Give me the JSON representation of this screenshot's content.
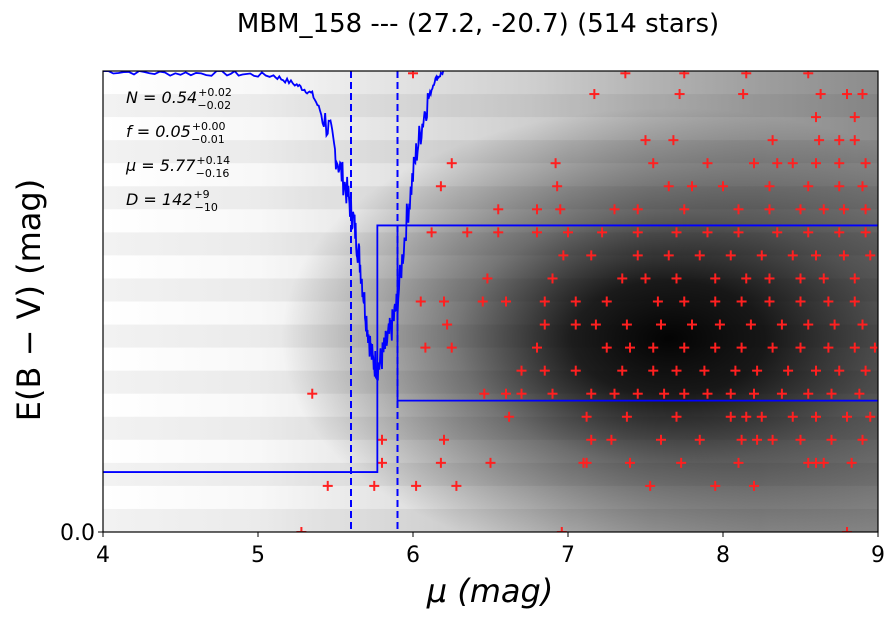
{
  "chart_data": {
    "type": "scatter",
    "title": "MBM_158 --- (27.2, -20.7) (514 stars)",
    "xlabel": "μ (mag)",
    "ylabel": "E(B − V) (mag)",
    "xlim": [
      4,
      9
    ],
    "ylim": [
      0,
      1
    ],
    "x_ticks": [
      "4",
      "5",
      "6",
      "7",
      "8",
      "9"
    ],
    "y_ticks": [
      "0.0"
    ],
    "annotations": [
      {
        "main": "N = 0.54",
        "sup": "+0.02",
        "sub": "−0.02"
      },
      {
        "main": "f = 0.05",
        "sup": "+0.00",
        "sub": "−0.01"
      },
      {
        "main": "μ = 5.77",
        "sup": "+0.14",
        "sub": "−0.16"
      },
      {
        "main": "D = 142",
        "sup": "+9",
        "sub": "−10"
      }
    ],
    "dashed_lines_x": [
      5.6,
      5.9
    ],
    "step_model": [
      {
        "x": 4.0,
        "y": 0.13
      },
      {
        "x": 5.77,
        "y": 0.13
      },
      {
        "x": 5.77,
        "y": 0.665
      },
      {
        "x": 9.0,
        "y": 0.665
      }
    ],
    "step_model_upper": [
      {
        "x": 5.9,
        "y": 0.665
      },
      {
        "x": 5.9,
        "y": 0.285
      },
      {
        "x": 9.0,
        "y": 0.285
      }
    ],
    "probability_curve": [
      {
        "x": 4.0,
        "y": 1.0
      },
      {
        "x": 4.4,
        "y": 0.995
      },
      {
        "x": 4.8,
        "y": 0.995
      },
      {
        "x": 5.1,
        "y": 0.99
      },
      {
        "x": 5.25,
        "y": 0.97
      },
      {
        "x": 5.35,
        "y": 0.95
      },
      {
        "x": 5.45,
        "y": 0.88
      },
      {
        "x": 5.52,
        "y": 0.8
      },
      {
        "x": 5.58,
        "y": 0.73
      },
      {
        "x": 5.62,
        "y": 0.67
      },
      {
        "x": 5.66,
        "y": 0.58
      },
      {
        "x": 5.7,
        "y": 0.46
      },
      {
        "x": 5.74,
        "y": 0.37
      },
      {
        "x": 5.78,
        "y": 0.36
      },
      {
        "x": 5.82,
        "y": 0.4
      },
      {
        "x": 5.86,
        "y": 0.44
      },
      {
        "x": 5.9,
        "y": 0.5
      },
      {
        "x": 5.96,
        "y": 0.68
      },
      {
        "x": 6.02,
        "y": 0.82
      },
      {
        "x": 6.08,
        "y": 0.92
      },
      {
        "x": 6.14,
        "y": 0.98
      },
      {
        "x": 6.2,
        "y": 1.0
      }
    ],
    "stars": [
      {
        "x": 5.28,
        "y": 0.0
      },
      {
        "x": 6.96,
        "y": 0.0
      },
      {
        "x": 8.8,
        "y": 0.0
      },
      {
        "x": 5.45,
        "y": 0.1
      },
      {
        "x": 5.75,
        "y": 0.1
      },
      {
        "x": 6.02,
        "y": 0.1
      },
      {
        "x": 6.28,
        "y": 0.1
      },
      {
        "x": 7.53,
        "y": 0.1
      },
      {
        "x": 7.95,
        "y": 0.1
      },
      {
        "x": 8.2,
        "y": 0.1
      },
      {
        "x": 5.8,
        "y": 0.15
      },
      {
        "x": 6.18,
        "y": 0.15
      },
      {
        "x": 6.5,
        "y": 0.15
      },
      {
        "x": 7.1,
        "y": 0.15
      },
      {
        "x": 7.12,
        "y": 0.15
      },
      {
        "x": 7.4,
        "y": 0.15
      },
      {
        "x": 7.73,
        "y": 0.15
      },
      {
        "x": 8.1,
        "y": 0.15
      },
      {
        "x": 8.55,
        "y": 0.15
      },
      {
        "x": 8.6,
        "y": 0.15
      },
      {
        "x": 8.65,
        "y": 0.15
      },
      {
        "x": 8.83,
        "y": 0.15
      },
      {
        "x": 5.8,
        "y": 0.2
      },
      {
        "x": 6.2,
        "y": 0.2
      },
      {
        "x": 7.15,
        "y": 0.2
      },
      {
        "x": 7.28,
        "y": 0.2
      },
      {
        "x": 7.6,
        "y": 0.2
      },
      {
        "x": 7.85,
        "y": 0.2
      },
      {
        "x": 8.12,
        "y": 0.2
      },
      {
        "x": 8.22,
        "y": 0.2
      },
      {
        "x": 8.32,
        "y": 0.2
      },
      {
        "x": 8.5,
        "y": 0.2
      },
      {
        "x": 8.7,
        "y": 0.2
      },
      {
        "x": 8.9,
        "y": 0.2
      },
      {
        "x": 6.62,
        "y": 0.25
      },
      {
        "x": 7.12,
        "y": 0.25
      },
      {
        "x": 7.38,
        "y": 0.25
      },
      {
        "x": 7.7,
        "y": 0.25
      },
      {
        "x": 8.05,
        "y": 0.25
      },
      {
        "x": 8.15,
        "y": 0.25
      },
      {
        "x": 8.25,
        "y": 0.25
      },
      {
        "x": 8.45,
        "y": 0.25
      },
      {
        "x": 8.6,
        "y": 0.25
      },
      {
        "x": 8.8,
        "y": 0.25
      },
      {
        "x": 8.95,
        "y": 0.25
      },
      {
        "x": 5.35,
        "y": 0.3
      },
      {
        "x": 6.46,
        "y": 0.3
      },
      {
        "x": 6.6,
        "y": 0.3
      },
      {
        "x": 6.7,
        "y": 0.3
      },
      {
        "x": 6.9,
        "y": 0.3
      },
      {
        "x": 7.15,
        "y": 0.3
      },
      {
        "x": 7.3,
        "y": 0.3
      },
      {
        "x": 7.45,
        "y": 0.3
      },
      {
        "x": 7.62,
        "y": 0.3
      },
      {
        "x": 7.75,
        "y": 0.3
      },
      {
        "x": 7.9,
        "y": 0.3
      },
      {
        "x": 8.05,
        "y": 0.3
      },
      {
        "x": 8.2,
        "y": 0.3
      },
      {
        "x": 8.38,
        "y": 0.3
      },
      {
        "x": 8.55,
        "y": 0.3
      },
      {
        "x": 8.7,
        "y": 0.3
      },
      {
        "x": 8.88,
        "y": 0.3
      },
      {
        "x": 6.7,
        "y": 0.35
      },
      {
        "x": 6.85,
        "y": 0.35
      },
      {
        "x": 7.05,
        "y": 0.35
      },
      {
        "x": 7.35,
        "y": 0.35
      },
      {
        "x": 7.55,
        "y": 0.35
      },
      {
        "x": 7.7,
        "y": 0.35
      },
      {
        "x": 7.88,
        "y": 0.35
      },
      {
        "x": 8.08,
        "y": 0.35
      },
      {
        "x": 8.22,
        "y": 0.35
      },
      {
        "x": 8.42,
        "y": 0.35
      },
      {
        "x": 8.6,
        "y": 0.35
      },
      {
        "x": 8.75,
        "y": 0.35
      },
      {
        "x": 8.92,
        "y": 0.35
      },
      {
        "x": 6.08,
        "y": 0.4
      },
      {
        "x": 6.25,
        "y": 0.4
      },
      {
        "x": 6.8,
        "y": 0.4
      },
      {
        "x": 7.25,
        "y": 0.4
      },
      {
        "x": 7.4,
        "y": 0.4
      },
      {
        "x": 7.55,
        "y": 0.4
      },
      {
        "x": 7.75,
        "y": 0.4
      },
      {
        "x": 7.95,
        "y": 0.4
      },
      {
        "x": 8.12,
        "y": 0.4
      },
      {
        "x": 8.32,
        "y": 0.4
      },
      {
        "x": 8.5,
        "y": 0.4
      },
      {
        "x": 8.68,
        "y": 0.4
      },
      {
        "x": 8.85,
        "y": 0.4
      },
      {
        "x": 8.98,
        "y": 0.4
      },
      {
        "x": 6.22,
        "y": 0.45
      },
      {
        "x": 6.85,
        "y": 0.45
      },
      {
        "x": 7.05,
        "y": 0.45
      },
      {
        "x": 7.18,
        "y": 0.45
      },
      {
        "x": 7.38,
        "y": 0.45
      },
      {
        "x": 7.6,
        "y": 0.45
      },
      {
        "x": 7.8,
        "y": 0.45
      },
      {
        "x": 7.98,
        "y": 0.45
      },
      {
        "x": 8.18,
        "y": 0.45
      },
      {
        "x": 8.38,
        "y": 0.45
      },
      {
        "x": 8.55,
        "y": 0.45
      },
      {
        "x": 8.72,
        "y": 0.45
      },
      {
        "x": 8.9,
        "y": 0.45
      },
      {
        "x": 6.05,
        "y": 0.5
      },
      {
        "x": 6.2,
        "y": 0.5
      },
      {
        "x": 6.45,
        "y": 0.5
      },
      {
        "x": 6.6,
        "y": 0.5
      },
      {
        "x": 6.85,
        "y": 0.5
      },
      {
        "x": 7.05,
        "y": 0.5
      },
      {
        "x": 7.25,
        "y": 0.5
      },
      {
        "x": 7.58,
        "y": 0.5
      },
      {
        "x": 7.75,
        "y": 0.5
      },
      {
        "x": 7.95,
        "y": 0.5
      },
      {
        "x": 8.12,
        "y": 0.5
      },
      {
        "x": 8.3,
        "y": 0.5
      },
      {
        "x": 8.5,
        "y": 0.5
      },
      {
        "x": 8.68,
        "y": 0.5
      },
      {
        "x": 8.85,
        "y": 0.5
      },
      {
        "x": 6.48,
        "y": 0.55
      },
      {
        "x": 6.9,
        "y": 0.55
      },
      {
        "x": 7.35,
        "y": 0.55
      },
      {
        "x": 7.5,
        "y": 0.55
      },
      {
        "x": 7.7,
        "y": 0.55
      },
      {
        "x": 7.95,
        "y": 0.55
      },
      {
        "x": 8.15,
        "y": 0.55
      },
      {
        "x": 8.3,
        "y": 0.55
      },
      {
        "x": 8.5,
        "y": 0.55
      },
      {
        "x": 8.65,
        "y": 0.55
      },
      {
        "x": 8.85,
        "y": 0.55
      },
      {
        "x": 6.97,
        "y": 0.6
      },
      {
        "x": 7.15,
        "y": 0.6
      },
      {
        "x": 7.45,
        "y": 0.6
      },
      {
        "x": 7.65,
        "y": 0.6
      },
      {
        "x": 7.85,
        "y": 0.6
      },
      {
        "x": 8.05,
        "y": 0.6
      },
      {
        "x": 8.25,
        "y": 0.6
      },
      {
        "x": 8.45,
        "y": 0.6
      },
      {
        "x": 8.6,
        "y": 0.6
      },
      {
        "x": 8.78,
        "y": 0.6
      },
      {
        "x": 8.95,
        "y": 0.6
      },
      {
        "x": 6.12,
        "y": 0.65
      },
      {
        "x": 6.35,
        "y": 0.65
      },
      {
        "x": 6.55,
        "y": 0.65
      },
      {
        "x": 6.8,
        "y": 0.65
      },
      {
        "x": 7.0,
        "y": 0.65
      },
      {
        "x": 7.22,
        "y": 0.65
      },
      {
        "x": 7.45,
        "y": 0.65
      },
      {
        "x": 7.7,
        "y": 0.65
      },
      {
        "x": 7.9,
        "y": 0.65
      },
      {
        "x": 8.1,
        "y": 0.65
      },
      {
        "x": 8.35,
        "y": 0.65
      },
      {
        "x": 8.55,
        "y": 0.65
      },
      {
        "x": 8.75,
        "y": 0.65
      },
      {
        "x": 8.92,
        "y": 0.65
      },
      {
        "x": 6.55,
        "y": 0.7
      },
      {
        "x": 6.8,
        "y": 0.7
      },
      {
        "x": 6.95,
        "y": 0.7
      },
      {
        "x": 7.3,
        "y": 0.7
      },
      {
        "x": 7.45,
        "y": 0.7
      },
      {
        "x": 7.75,
        "y": 0.7
      },
      {
        "x": 8.1,
        "y": 0.7
      },
      {
        "x": 8.3,
        "y": 0.7
      },
      {
        "x": 8.5,
        "y": 0.7
      },
      {
        "x": 8.65,
        "y": 0.7
      },
      {
        "x": 8.78,
        "y": 0.7
      },
      {
        "x": 8.92,
        "y": 0.7
      },
      {
        "x": 6.18,
        "y": 0.75
      },
      {
        "x": 6.93,
        "y": 0.75
      },
      {
        "x": 7.65,
        "y": 0.75
      },
      {
        "x": 7.8,
        "y": 0.75
      },
      {
        "x": 8.0,
        "y": 0.75
      },
      {
        "x": 8.3,
        "y": 0.75
      },
      {
        "x": 8.55,
        "y": 0.75
      },
      {
        "x": 8.75,
        "y": 0.75
      },
      {
        "x": 8.9,
        "y": 0.75
      },
      {
        "x": 6.25,
        "y": 0.8
      },
      {
        "x": 6.92,
        "y": 0.8
      },
      {
        "x": 7.55,
        "y": 0.8
      },
      {
        "x": 7.9,
        "y": 0.8
      },
      {
        "x": 8.2,
        "y": 0.8
      },
      {
        "x": 8.35,
        "y": 0.8
      },
      {
        "x": 8.45,
        "y": 0.8
      },
      {
        "x": 8.6,
        "y": 0.8
      },
      {
        "x": 8.75,
        "y": 0.8
      },
      {
        "x": 8.92,
        "y": 0.8
      },
      {
        "x": 7.5,
        "y": 0.85
      },
      {
        "x": 7.68,
        "y": 0.85
      },
      {
        "x": 8.32,
        "y": 0.85
      },
      {
        "x": 8.62,
        "y": 0.85
      },
      {
        "x": 8.75,
        "y": 0.85
      },
      {
        "x": 8.85,
        "y": 0.85
      },
      {
        "x": 8.6,
        "y": 0.9
      },
      {
        "x": 8.85,
        "y": 0.9
      },
      {
        "x": 7.17,
        "y": 0.95
      },
      {
        "x": 7.72,
        "y": 0.95
      },
      {
        "x": 8.13,
        "y": 0.95
      },
      {
        "x": 8.63,
        "y": 0.95
      },
      {
        "x": 8.8,
        "y": 0.95
      },
      {
        "x": 8.9,
        "y": 0.95
      },
      {
        "x": 6.0,
        "y": 0.995
      },
      {
        "x": 7.37,
        "y": 0.995
      },
      {
        "x": 7.75,
        "y": 0.995
      },
      {
        "x": 8.15,
        "y": 0.995
      },
      {
        "x": 8.55,
        "y": 0.995
      }
    ],
    "grid": false,
    "colors": {
      "stars": "#ff2020",
      "model": "#0000ff",
      "background_dark": "#000000",
      "background_light": "#ffffff"
    }
  }
}
